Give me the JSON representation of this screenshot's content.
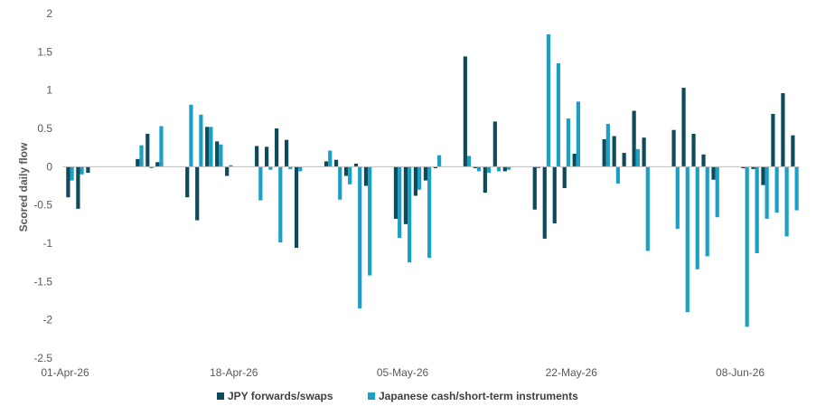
{
  "chart_data": {
    "type": "bar",
    "title": "",
    "xlabel": "",
    "ylabel": "Scored daily flow",
    "ylim": [
      -2.5,
      2
    ],
    "yticks": [
      2,
      1.5,
      1,
      0.5,
      0,
      -0.5,
      -1,
      -1.5,
      -2,
      -2.5
    ],
    "ytick_labels": [
      "2",
      "1.5",
      "1",
      "0.5",
      "0",
      "-0.5",
      "-1",
      "-1.5",
      "-2",
      "-2.5"
    ],
    "x_start": "2026-04-01",
    "x_end": "2026-06-14",
    "x_tick_labels": [
      {
        "date": "2026-04-01",
        "label": "01-Apr-26"
      },
      {
        "date": "2026-04-18",
        "label": "18-Apr-26"
      },
      {
        "date": "2026-05-05",
        "label": "05-May-26"
      },
      {
        "date": "2026-05-22",
        "label": "22-May-26"
      },
      {
        "date": "2026-06-08",
        "label": "08-Jun-26"
      }
    ],
    "grid": false,
    "legend_position": "bottom",
    "series": [
      {
        "name": "JPY forwards/swaps",
        "color": "#0E4A59",
        "points": [
          {
            "x": "2026-04-01",
            "y": -0.4
          },
          {
            "x": "2026-04-02",
            "y": -0.55
          },
          {
            "x": "2026-04-03",
            "y": -0.08
          },
          {
            "x": "2026-04-08",
            "y": 0.1
          },
          {
            "x": "2026-04-09",
            "y": 0.43
          },
          {
            "x": "2026-04-10",
            "y": 0.06
          },
          {
            "x": "2026-04-13",
            "y": -0.4
          },
          {
            "x": "2026-04-14",
            "y": -0.7
          },
          {
            "x": "2026-04-15",
            "y": 0.52
          },
          {
            "x": "2026-04-16",
            "y": 0.33
          },
          {
            "x": "2026-04-17",
            "y": -0.12
          },
          {
            "x": "2026-04-20",
            "y": 0.27
          },
          {
            "x": "2026-04-21",
            "y": 0.26
          },
          {
            "x": "2026-04-22",
            "y": 0.5
          },
          {
            "x": "2026-04-23",
            "y": 0.35
          },
          {
            "x": "2026-04-24",
            "y": -1.06
          },
          {
            "x": "2026-04-27",
            "y": 0.07
          },
          {
            "x": "2026-04-28",
            "y": 0.09
          },
          {
            "x": "2026-04-29",
            "y": -0.12
          },
          {
            "x": "2026-04-30",
            "y": 0.04
          },
          {
            "x": "2026-05-01",
            "y": -0.25
          },
          {
            "x": "2026-05-04",
            "y": -0.68
          },
          {
            "x": "2026-05-05",
            "y": -0.75
          },
          {
            "x": "2026-05-06",
            "y": -0.38
          },
          {
            "x": "2026-05-07",
            "y": -0.18
          },
          {
            "x": "2026-05-08",
            "y": -0.02
          },
          {
            "x": "2026-05-11",
            "y": 1.44
          },
          {
            "x": "2026-05-12",
            "y": -0.02
          },
          {
            "x": "2026-05-13",
            "y": -0.34
          },
          {
            "x": "2026-05-14",
            "y": 0.59
          },
          {
            "x": "2026-05-15",
            "y": -0.06
          },
          {
            "x": "2026-05-18",
            "y": -0.56
          },
          {
            "x": "2026-05-19",
            "y": -0.94
          },
          {
            "x": "2026-05-20",
            "y": -0.74
          },
          {
            "x": "2026-05-21",
            "y": -0.28
          },
          {
            "x": "2026-05-22",
            "y": 0.17
          },
          {
            "x": "2026-05-25",
            "y": 0.36
          },
          {
            "x": "2026-05-26",
            "y": 0.4
          },
          {
            "x": "2026-05-27",
            "y": 0.18
          },
          {
            "x": "2026-05-28",
            "y": 0.73
          },
          {
            "x": "2026-05-29",
            "y": 0.38
          },
          {
            "x": "2026-06-01",
            "y": 0.48
          },
          {
            "x": "2026-06-02",
            "y": 1.03
          },
          {
            "x": "2026-06-03",
            "y": 0.43
          },
          {
            "x": "2026-06-04",
            "y": 0.16
          },
          {
            "x": "2026-06-05",
            "y": -0.17
          },
          {
            "x": "2026-06-08",
            "y": -0.02
          },
          {
            "x": "2026-06-09",
            "y": -0.03
          },
          {
            "x": "2026-06-10",
            "y": -0.24
          },
          {
            "x": "2026-06-11",
            "y": 0.69
          },
          {
            "x": "2026-06-12",
            "y": 0.96
          },
          {
            "x": "2026-06-13",
            "y": 0.41
          }
        ]
      },
      {
        "name": "Japanese cash/short-term instruments",
        "color": "#1AA0C4",
        "points": [
          {
            "x": "2026-04-01",
            "y": -0.18
          },
          {
            "x": "2026-04-02",
            "y": -0.1
          },
          {
            "x": "2026-04-08",
            "y": 0.28
          },
          {
            "x": "2026-04-09",
            "y": -0.02
          },
          {
            "x": "2026-04-10",
            "y": 0.53
          },
          {
            "x": "2026-04-13",
            "y": 0.81
          },
          {
            "x": "2026-04-14",
            "y": 0.68
          },
          {
            "x": "2026-04-15",
            "y": 0.52
          },
          {
            "x": "2026-04-16",
            "y": 0.29
          },
          {
            "x": "2026-04-17",
            "y": 0.02
          },
          {
            "x": "2026-04-20",
            "y": -0.44
          },
          {
            "x": "2026-04-21",
            "y": -0.04
          },
          {
            "x": "2026-04-22",
            "y": -0.99
          },
          {
            "x": "2026-04-23",
            "y": -0.03
          },
          {
            "x": "2026-04-24",
            "y": -0.06
          },
          {
            "x": "2026-04-27",
            "y": 0.21
          },
          {
            "x": "2026-04-28",
            "y": -0.43
          },
          {
            "x": "2026-04-29",
            "y": -0.23
          },
          {
            "x": "2026-04-30",
            "y": -1.85
          },
          {
            "x": "2026-05-01",
            "y": -1.42
          },
          {
            "x": "2026-05-04",
            "y": -0.93
          },
          {
            "x": "2026-05-05",
            "y": -1.25
          },
          {
            "x": "2026-05-06",
            "y": -0.3
          },
          {
            "x": "2026-05-07",
            "y": -1.19
          },
          {
            "x": "2026-05-08",
            "y": 0.15
          },
          {
            "x": "2026-05-11",
            "y": 0.14
          },
          {
            "x": "2026-05-12",
            "y": -0.06
          },
          {
            "x": "2026-05-13",
            "y": -0.08
          },
          {
            "x": "2026-05-14",
            "y": -0.06
          },
          {
            "x": "2026-05-15",
            "y": -0.04
          },
          {
            "x": "2026-05-18",
            "y": -0.02
          },
          {
            "x": "2026-05-19",
            "y": 1.73
          },
          {
            "x": "2026-05-20",
            "y": 1.35
          },
          {
            "x": "2026-05-21",
            "y": 0.63
          },
          {
            "x": "2026-05-22",
            "y": 0.85
          },
          {
            "x": "2026-05-25",
            "y": 0.56
          },
          {
            "x": "2026-05-26",
            "y": -0.22
          },
          {
            "x": "2026-05-28",
            "y": 0.23
          },
          {
            "x": "2026-05-29",
            "y": -1.1
          },
          {
            "x": "2026-06-01",
            "y": -0.81
          },
          {
            "x": "2026-06-02",
            "y": -1.9
          },
          {
            "x": "2026-06-03",
            "y": -1.34
          },
          {
            "x": "2026-06-04",
            "y": -1.17
          },
          {
            "x": "2026-06-05",
            "y": -0.66
          },
          {
            "x": "2026-06-08",
            "y": -2.09
          },
          {
            "x": "2026-06-09",
            "y": -1.13
          },
          {
            "x": "2026-06-10",
            "y": -0.68
          },
          {
            "x": "2026-06-11",
            "y": -0.6
          },
          {
            "x": "2026-06-12",
            "y": -0.91
          },
          {
            "x": "2026-06-13",
            "y": -0.57
          }
        ]
      }
    ]
  }
}
